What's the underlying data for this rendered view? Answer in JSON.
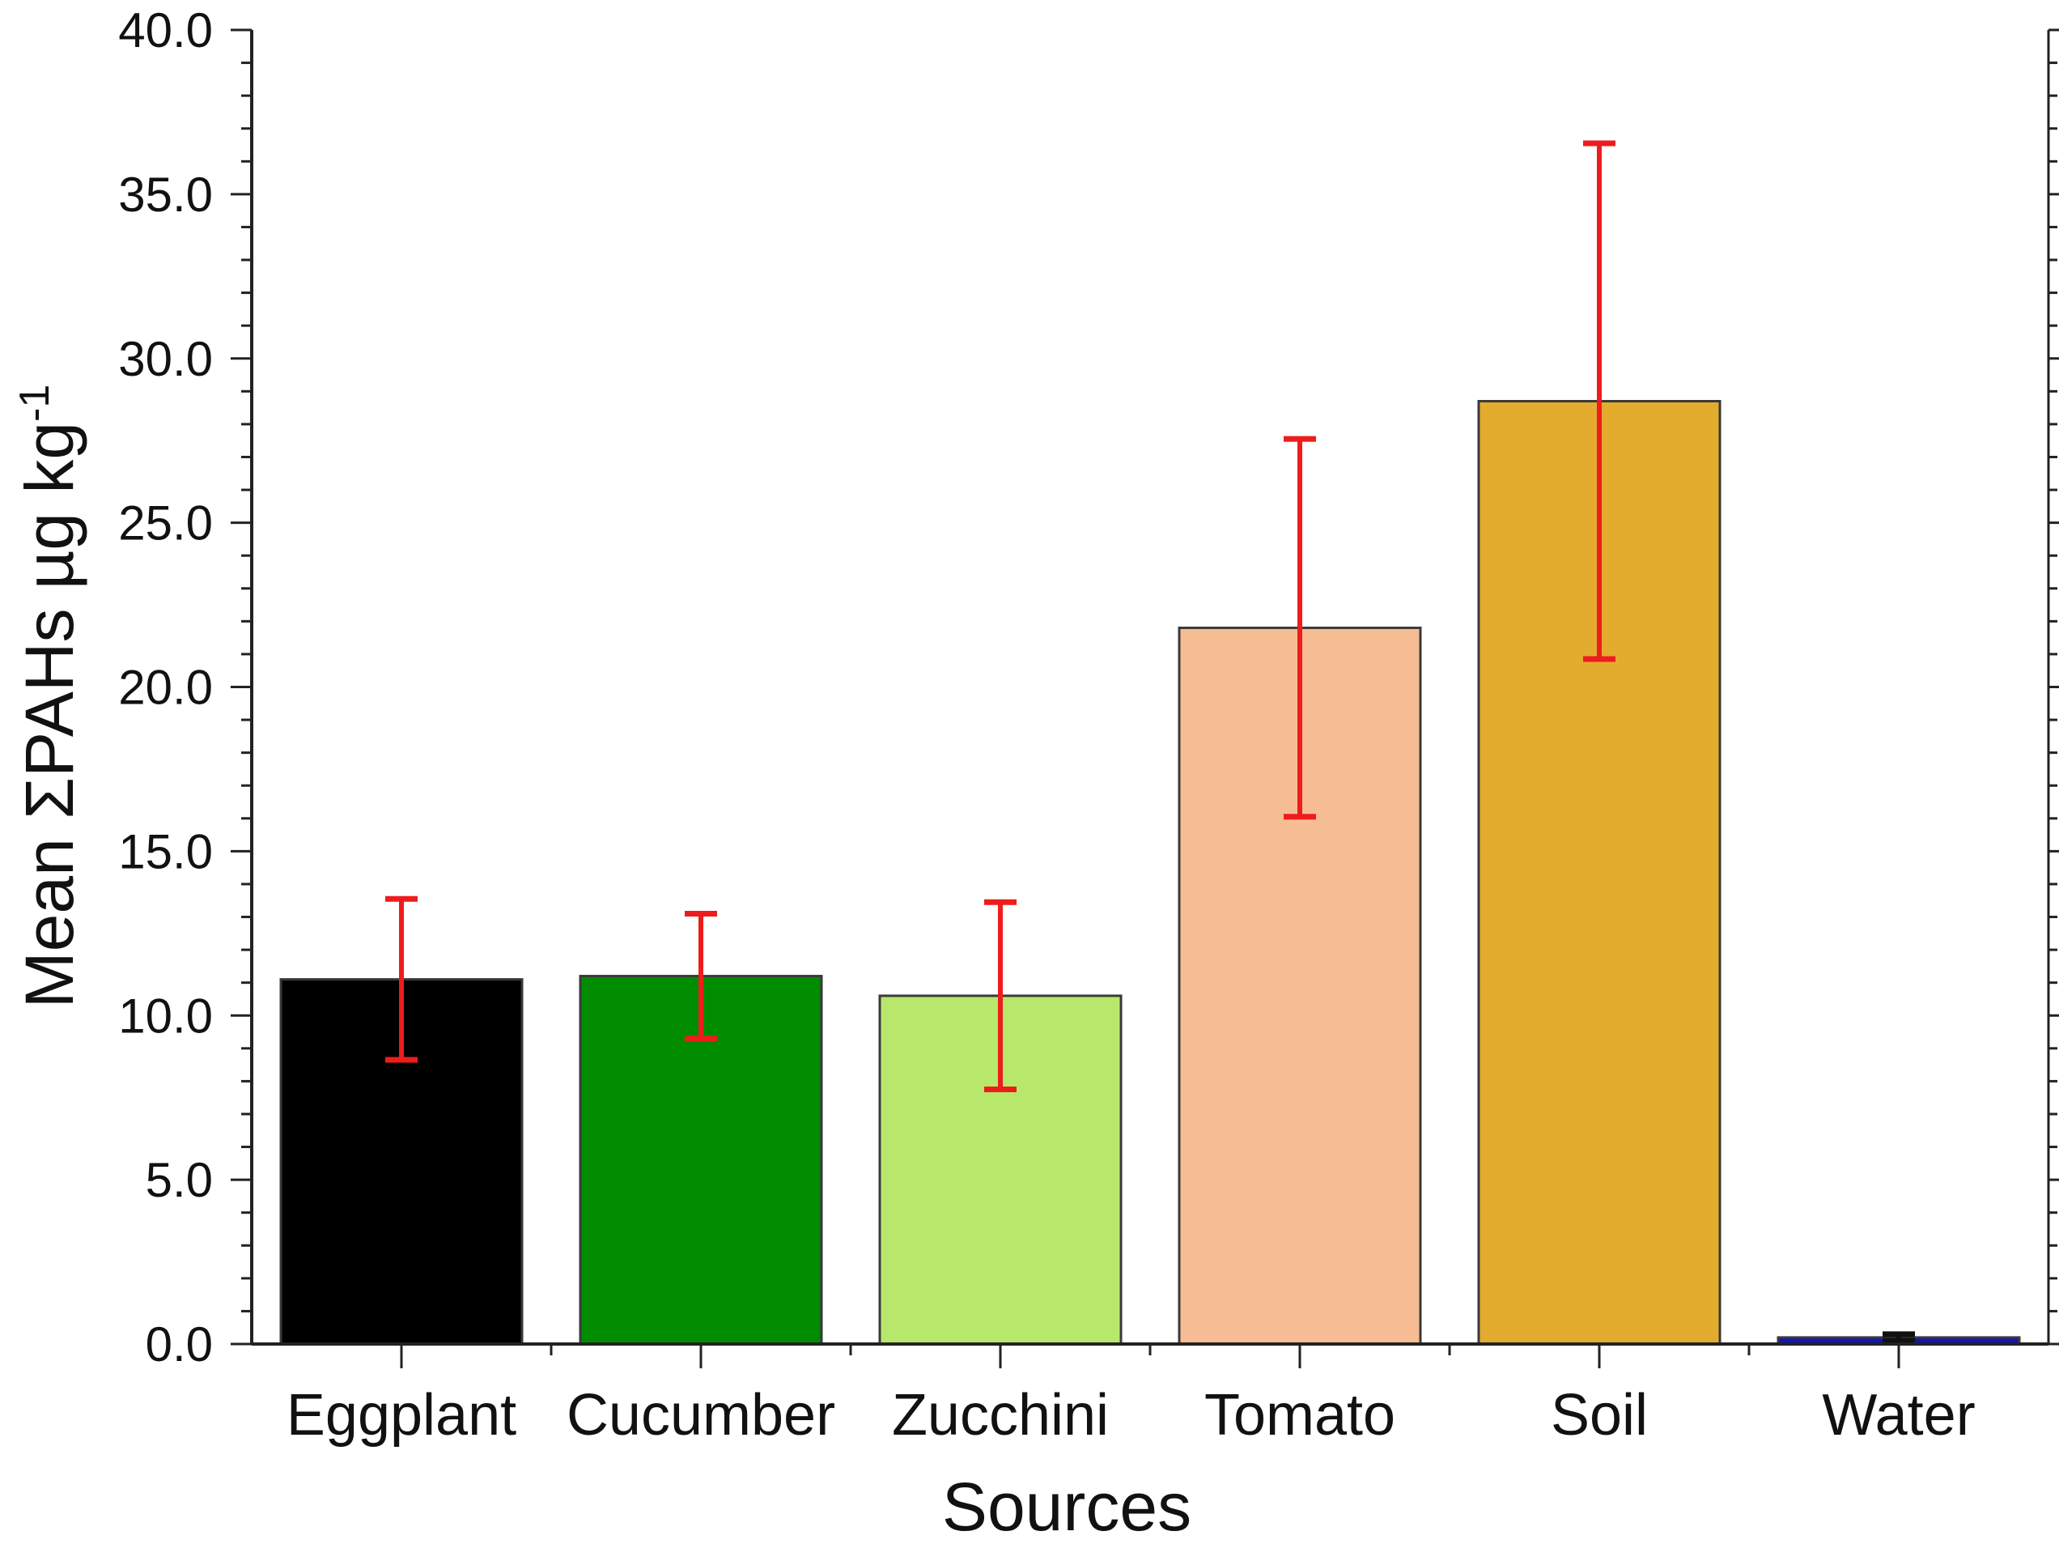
{
  "chart_data": {
    "type": "bar",
    "title": "",
    "xlabel": "Sources",
    "ylabel": "Mean ΣPAHs µg kg",
    "ylabel_superscript": "-1",
    "categories": [
      "Eggplant",
      "Cucumber",
      "Zucchini",
      "Tomato",
      "Soil",
      "Water"
    ],
    "values": [
      11.1,
      11.2,
      10.6,
      21.8,
      28.7,
      0.2
    ],
    "errors": [
      2.45,
      1.9,
      2.85,
      5.75,
      7.85,
      0.1
    ],
    "colors": [
      "#000000",
      "#008c00",
      "#b8e86b",
      "#f6bd94",
      "#e3ac2f",
      "#1212c8"
    ],
    "error_color": "#ee1c1c",
    "ylim": [
      0,
      40
    ],
    "yticks": [
      "0.0",
      "5.0",
      "10.0",
      "15.0",
      "20.0",
      "25.0",
      "30.0",
      "35.0",
      "40.0"
    ],
    "grid": false,
    "legend": "none"
  }
}
